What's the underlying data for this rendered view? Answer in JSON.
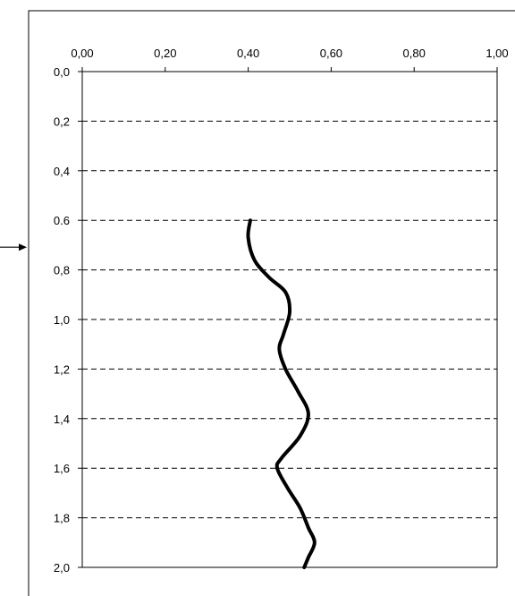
{
  "chart_data": {
    "type": "line",
    "title": "",
    "xlabel": "",
    "ylabel": "",
    "xlim": [
      0,
      1
    ],
    "ylim": [
      2.0,
      0.0
    ],
    "y_inverted": true,
    "x_axis_position": "top",
    "x_ticks": [
      "0,00",
      "0,20",
      "0,40",
      "0,60",
      "0,80",
      "1,00"
    ],
    "x_tick_values": [
      0,
      0.2,
      0.4,
      0.6,
      0.8,
      1.0
    ],
    "y_ticks": [
      "0,0",
      "0,2",
      "0,4",
      "0.6",
      "0,8",
      "1,0",
      "1,2",
      "1,4",
      "1,6",
      "1,8",
      "2,0"
    ],
    "y_tick_values": [
      0,
      0.2,
      0.4,
      0.6,
      0.8,
      1.0,
      1.2,
      1.4,
      1.6,
      1.8,
      2.0
    ],
    "grid": "horizontal-dashed",
    "legend": "none",
    "series": [
      {
        "color": "#000000",
        "points": [
          {
            "x": 0.405,
            "y": 0.6
          },
          {
            "x": 0.4,
            "y": 0.67
          },
          {
            "x": 0.415,
            "y": 0.76
          },
          {
            "x": 0.45,
            "y": 0.83
          },
          {
            "x": 0.49,
            "y": 0.89
          },
          {
            "x": 0.5,
            "y": 0.97
          },
          {
            "x": 0.485,
            "y": 1.06
          },
          {
            "x": 0.475,
            "y": 1.12
          },
          {
            "x": 0.49,
            "y": 1.2
          },
          {
            "x": 0.52,
            "y": 1.29
          },
          {
            "x": 0.545,
            "y": 1.38
          },
          {
            "x": 0.525,
            "y": 1.47
          },
          {
            "x": 0.48,
            "y": 1.56
          },
          {
            "x": 0.47,
            "y": 1.6
          },
          {
            "x": 0.495,
            "y": 1.68
          },
          {
            "x": 0.525,
            "y": 1.76
          },
          {
            "x": 0.545,
            "y": 1.84
          },
          {
            "x": 0.56,
            "y": 1.9
          },
          {
            "x": 0.545,
            "y": 1.96
          },
          {
            "x": 0.535,
            "y": 2.0
          }
        ]
      }
    ],
    "annotation_arrow": true
  }
}
